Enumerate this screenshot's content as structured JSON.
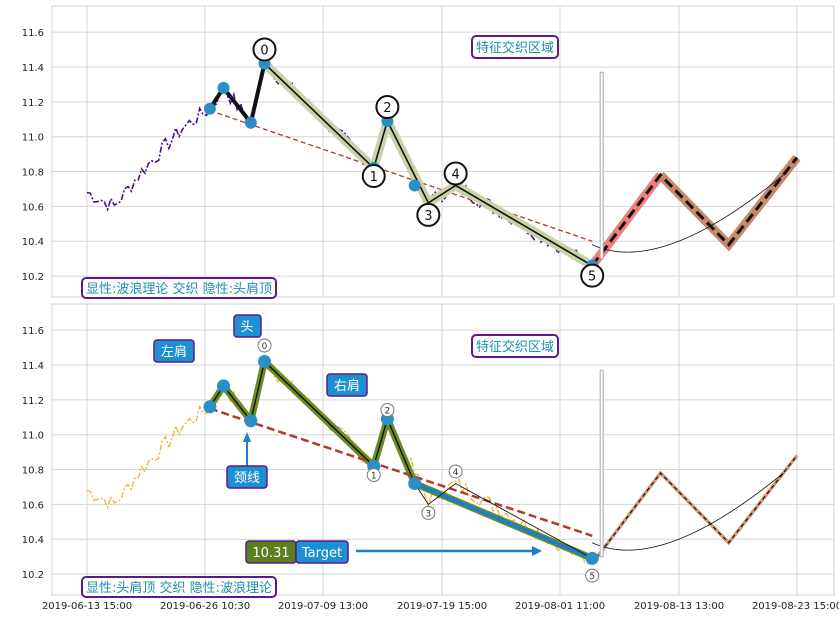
{
  "chart_data": [
    {
      "type": "line",
      "title": "",
      "xlabel": "",
      "ylabel": "",
      "ylim": [
        10.08,
        11.75
      ],
      "yticks": [
        "10.2",
        "10.4",
        "10.6",
        "10.8",
        "11.0",
        "11.2",
        "11.4",
        "11.6"
      ],
      "grid": true,
      "annotation": "特征交织区域",
      "legend_box": "显性:波浪理论 交织 隐性:头肩顶",
      "colors": {
        "price": "#4b0f8c",
        "wave": "#000000",
        "wave_band": "#c8d3a8",
        "neckline": "#b03a2e",
        "projection_band": "#ef7f7f",
        "projection_band_late": "#c98a6a",
        "label": "#1a8fb0",
        "box_border": "#5a1a8c",
        "marker": "#2a8fc6"
      },
      "wave_labels": [
        "0",
        "1",
        "2",
        "3",
        "4",
        "5"
      ],
      "points": [
        {
          "label": "0",
          "x": 13,
          "y": 11.42
        },
        {
          "label": "1",
          "x": 21,
          "y": 10.82
        },
        {
          "label": "2",
          "x": 22,
          "y": 11.09
        },
        {
          "label": "3",
          "x": 25,
          "y": 10.62
        },
        {
          "label": "4",
          "x": 27,
          "y": 10.72
        },
        {
          "label": "5",
          "x": 37,
          "y": 10.26
        }
      ],
      "projection": [
        [
          37,
          10.26
        ],
        [
          42,
          10.78
        ],
        [
          47,
          10.38
        ],
        [
          52,
          10.88
        ]
      ]
    },
    {
      "type": "line",
      "title": "",
      "xlabel": "",
      "ylabel": "",
      "ylim": [
        10.08,
        11.75
      ],
      "yticks": [
        "10.2",
        "10.4",
        "10.6",
        "10.8",
        "11.0",
        "11.2",
        "11.4",
        "11.6"
      ],
      "grid": true,
      "annotation": "特征交织区域",
      "legend_box": "显性:头肩顶 交织 隐性:波浪理论",
      "colors": {
        "price": "#f0b43c",
        "shoulders": "#6b8c23",
        "neckline": "#b03a2e",
        "target_line": "#1e7ec8",
        "projection": "#d89a78",
        "label_bg": "#1e8fd0",
        "value_bg": "#5a7f1e",
        "box_border": "#5a1a8c"
      },
      "labels": {
        "left_shoulder": "左肩",
        "head": "头",
        "right_shoulder": "右肩",
        "neckline": "颈线"
      },
      "target": {
        "value": "10.31",
        "label": "Target"
      },
      "wave_labels": [
        "0",
        "1",
        "2",
        "3",
        "4",
        "5"
      ],
      "x_tick_labels": [
        "2019-06-13 15:00",
        "2019-06-26 10:30",
        "2019-07-09 13:00",
        "2019-07-19 15:00",
        "2019-08-01 11:00",
        "2019-08-13 13:00",
        "2019-08-23 15:00"
      ]
    }
  ]
}
